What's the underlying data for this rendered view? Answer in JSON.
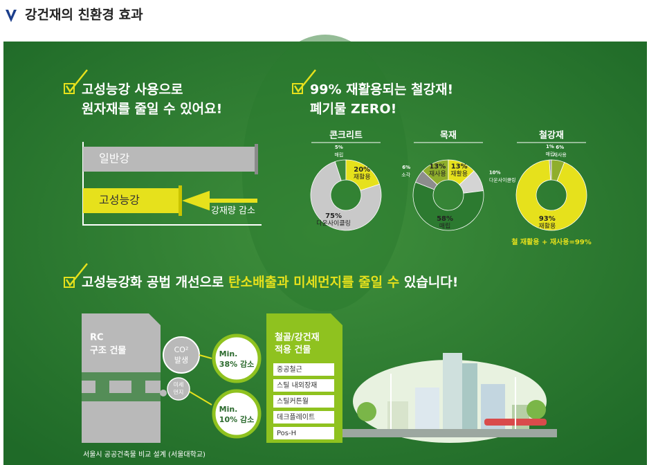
{
  "header": {
    "title": "강건재의 친환경 효과"
  },
  "section1": {
    "title_lines": [
      "고성능강 사용으로",
      "원자재를 줄일 수 있어요!"
    ],
    "bar_general": "일반강",
    "bar_high": "고성능강",
    "arrow_label": "강재량 감소"
  },
  "section2": {
    "title_lines": [
      "99% 재활용되는 철강재!",
      "폐기물 ZERO!"
    ],
    "donuts": [
      {
        "name": "콘크리트",
        "segments": [
          {
            "name": "매립",
            "value": 5,
            "label": "5%",
            "color": "#3d8a3a"
          },
          {
            "name": "재활용",
            "value": 20,
            "label": "20%",
            "color": "#e6e11c"
          },
          {
            "name": "다운사이클링",
            "value": 75,
            "label": "75%",
            "color": "#c9c9c9"
          }
        ]
      },
      {
        "name": "목재",
        "segments": [
          {
            "name": "재사용",
            "value": 13,
            "label": "13%",
            "color": "#8fae2c"
          },
          {
            "name": "재활용",
            "value": 13,
            "label": "13%",
            "color": "#e6e11c"
          },
          {
            "name": "다운사이클링",
            "value": 10,
            "label": "10%",
            "color": "#d4d4d4"
          },
          {
            "name": "매립",
            "value": 58,
            "label": "58%",
            "color": "#2c7a30"
          },
          {
            "name": "소각",
            "value": 6,
            "label": "6%",
            "color": "#8d8d8d"
          }
        ]
      },
      {
        "name": "철강재",
        "segments": [
          {
            "name": "매립",
            "value": 1,
            "label": "1%",
            "color": "#9a9a9a"
          },
          {
            "name": "재사용",
            "value": 6,
            "label": "6%",
            "color": "#8fae2c"
          },
          {
            "name": "재활용",
            "value": 93,
            "label": "93%",
            "color": "#e6e11c"
          }
        ]
      }
    ],
    "footnote": "철 재활용 + 재사용=99%"
  },
  "section3": {
    "title_parts": [
      "고성능강화 공법 개선으로 ",
      "탄소배출과 미세먼지를 줄일 수",
      " 있습니다!"
    ],
    "rc_lines": [
      "RC",
      "구조 건물"
    ],
    "co2_lines": [
      "CO²",
      "발생"
    ],
    "dust_lines": [
      "미세",
      "먼지"
    ],
    "result1_lines": [
      "Min.",
      "38% 감소"
    ],
    "result2_lines": [
      "Min.",
      "10% 감소"
    ],
    "steel_title_lines": [
      "철골/강건재",
      "적용 건물"
    ],
    "items": [
      "중공철근",
      "스틸 내외장재",
      "스틸커튼월",
      "데크플레이트",
      "Pos-H"
    ],
    "source": "서울시 공공건축물 비교 설계 (서울대학교)"
  }
}
